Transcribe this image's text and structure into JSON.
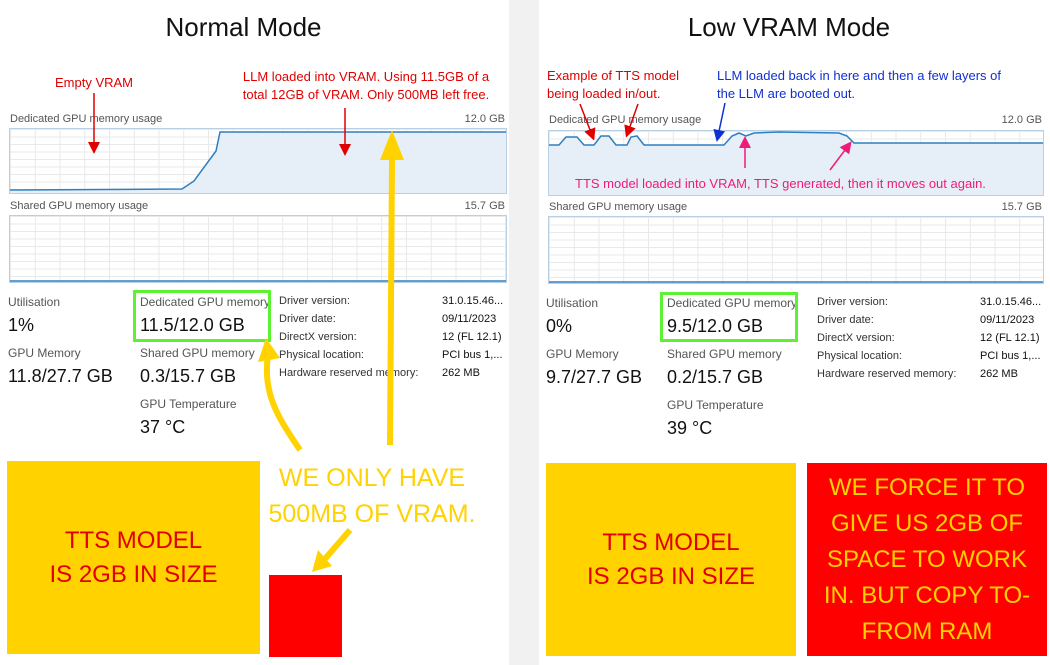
{
  "left": {
    "title": "Normal Mode",
    "dedicated_chart": {
      "label": "Dedicated GPU memory usage",
      "max": "12.0 GB"
    },
    "shared_chart": {
      "label": "Shared GPU memory usage",
      "max": "15.7 GB"
    },
    "stats": {
      "utilisation_label": "Utilisation",
      "utilisation_value": "1%",
      "gpu_memory_label": "GPU Memory",
      "gpu_memory_value": "11.8/27.7 GB",
      "dedicated_label": "Dedicated GPU memory",
      "dedicated_value": "11.5/12.0 GB",
      "shared_label": "Shared GPU memory",
      "shared_value": "0.3/15.7 GB",
      "temp_label": "GPU Temperature",
      "temp_value": "37 °C"
    },
    "info": [
      {
        "label": "Driver version:",
        "value": "31.0.15.46..."
      },
      {
        "label": "Driver date:",
        "value": "09/11/2023"
      },
      {
        "label": "DirectX version:",
        "value": "12 (FL 12.1)"
      },
      {
        "label": "Physical location:",
        "value": "PCI bus 1,..."
      },
      {
        "label": "Hardware reserved memory:",
        "value": "262 MB"
      }
    ],
    "annotations": {
      "empty_vram": "Empty VRAM",
      "llm_loaded_line1": "LLM loaded into VRAM. Using 11.5GB of a",
      "llm_loaded_line2": "total 12GB of VRAM. Only 500MB left free."
    },
    "yellow_box": {
      "line1": "TTS MODEL",
      "line2": "IS 2GB IN SIZE"
    },
    "callout": {
      "line1": "WE ONLY HAVE",
      "line2": "500MB OF VRAM."
    },
    "colors": {
      "red_block": "#ff0000"
    }
  },
  "right": {
    "title": "Low VRAM Mode",
    "dedicated_chart": {
      "label": "Dedicated GPU memory usage",
      "max": "12.0 GB"
    },
    "shared_chart": {
      "label": "Shared GPU memory usage",
      "max": "15.7 GB"
    },
    "stats": {
      "utilisation_label": "Utilisation",
      "utilisation_value": "0%",
      "gpu_memory_label": "GPU Memory",
      "gpu_memory_value": "9.7/27.7 GB",
      "dedicated_label": "Dedicated GPU memory",
      "dedicated_value": "9.5/12.0 GB",
      "shared_label": "Shared GPU memory",
      "shared_value": "0.2/15.7 GB",
      "temp_label": "GPU Temperature",
      "temp_value": "39 °C"
    },
    "info": [
      {
        "label": "Driver version:",
        "value": "31.0.15.46..."
      },
      {
        "label": "Driver date:",
        "value": "09/11/2023"
      },
      {
        "label": "DirectX version:",
        "value": "12 (FL 12.1)"
      },
      {
        "label": "Physical location:",
        "value": "PCI bus 1,..."
      },
      {
        "label": "Hardware reserved memory:",
        "value": "262 MB"
      }
    ],
    "annotations": {
      "tts_example_line1": "Example of TTS model",
      "tts_example_line2": "being loaded in/out.",
      "llm_back_line1": "LLM loaded back in here and then a few layers of",
      "llm_back_line2": "the LLM are booted out.",
      "tts_loaded": "TTS model loaded into VRAM, TTS generated, then it moves out again."
    },
    "yellow_box": {
      "line1": "TTS MODEL",
      "line2": "IS 2GB IN SIZE"
    },
    "red_box": {
      "line1": "WE FORCE IT TO",
      "line2": "GIVE US 2GB OF",
      "line3": "SPACE TO WORK",
      "line4": "IN. BUT COPY TO-",
      "line5": "FROM RAM"
    }
  },
  "colors": {
    "annotation_red": "#e00000",
    "annotation_blue": "#1030d0",
    "annotation_pink": "#f01a78",
    "highlight_green": "#5ef032",
    "arrow_yellow": "#ffd200",
    "box_yellow": "#ffd200",
    "box_red": "#ff0000",
    "chart_line": "#2f7fbf"
  }
}
